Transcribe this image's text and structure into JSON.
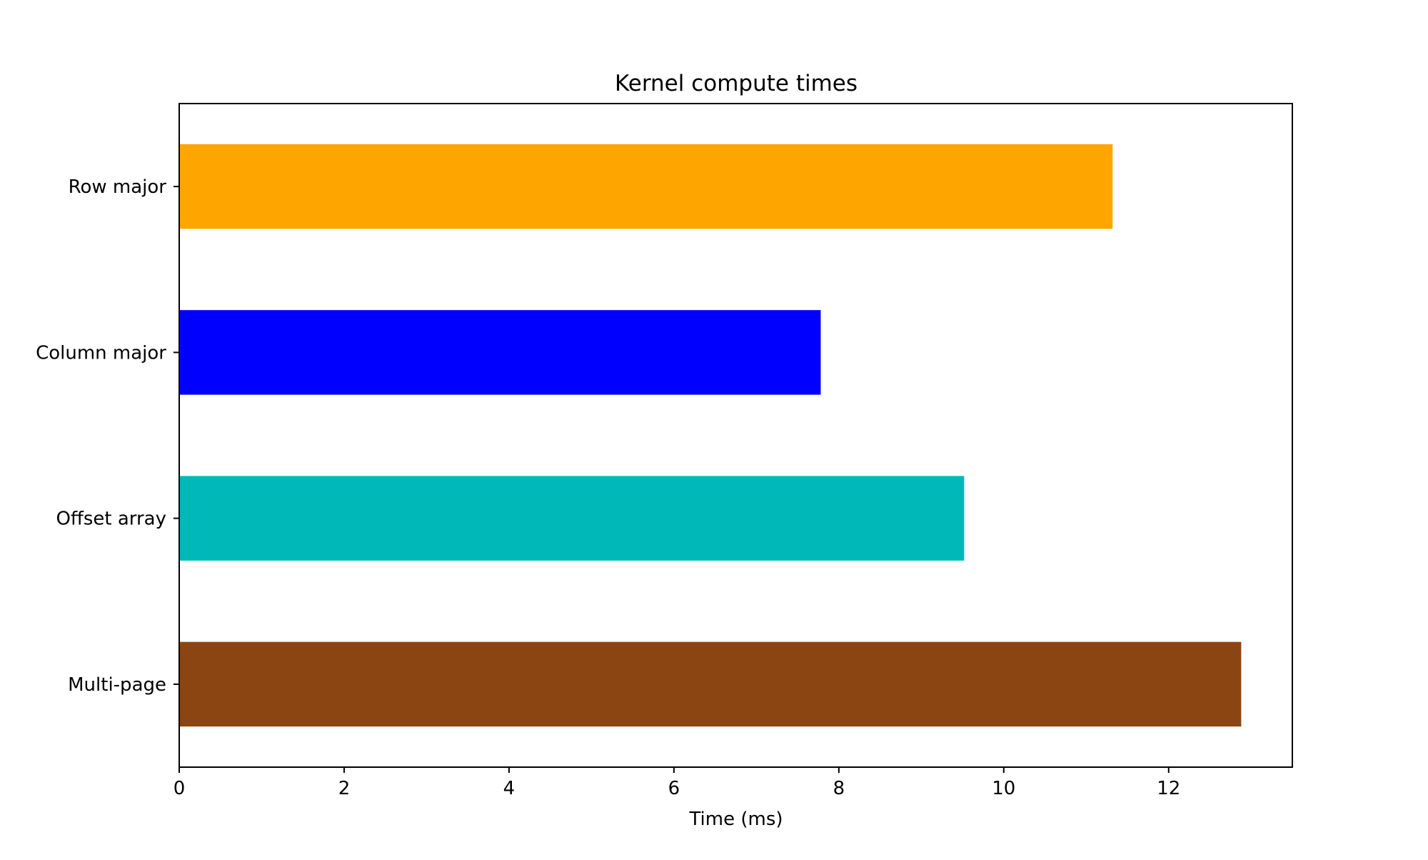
{
  "chart_data": {
    "type": "bar",
    "orientation": "horizontal",
    "title": "Kernel compute times",
    "xlabel": "Time (ms)",
    "ylabel": "",
    "categories": [
      "Row major",
      "Column major",
      "Offset array",
      "Multi-page"
    ],
    "values": [
      11.32,
      7.78,
      9.52,
      12.88
    ],
    "colors": [
      "#FFA500",
      "#0000FF",
      "#00B8B8",
      "#8B4513"
    ],
    "xlim": [
      0,
      13.5
    ],
    "xticks": [
      0,
      2,
      4,
      6,
      8,
      10,
      12
    ],
    "grid": false,
    "legend": "none"
  }
}
